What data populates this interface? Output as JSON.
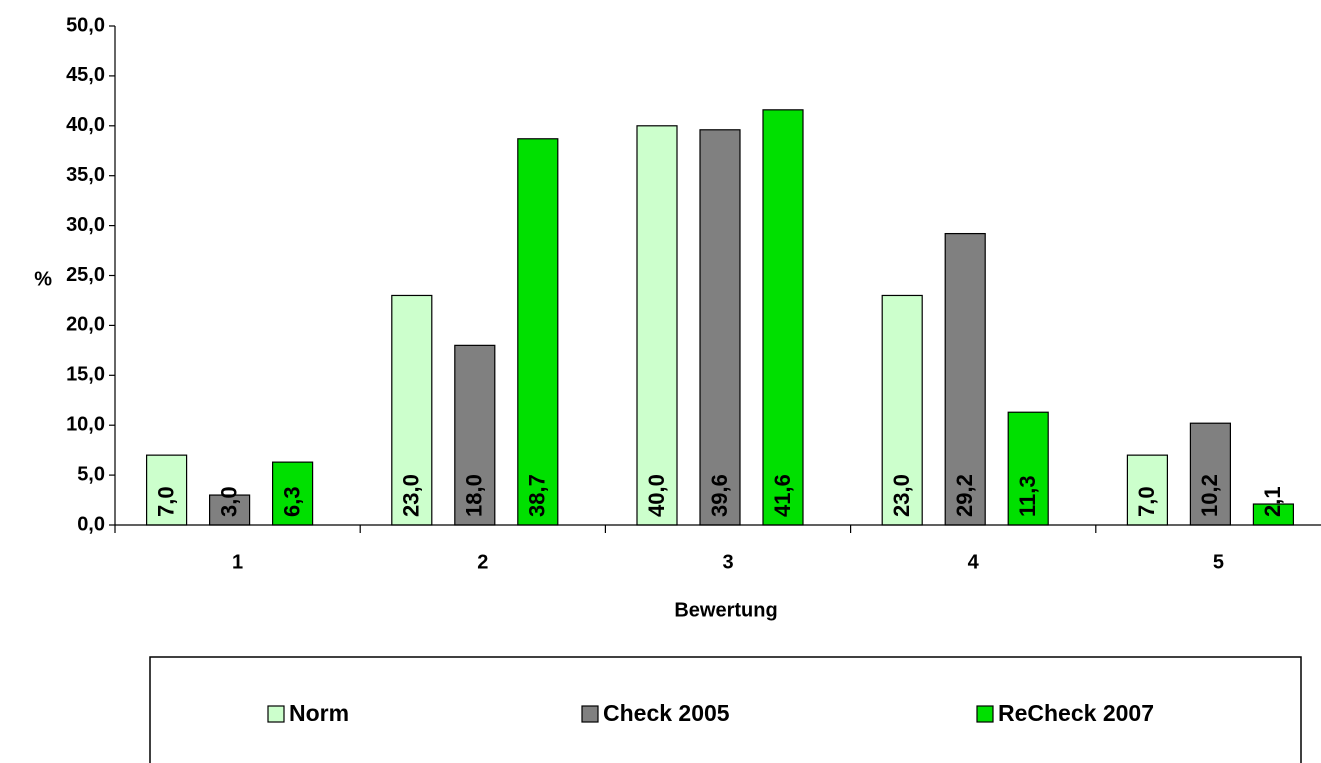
{
  "chart_data": {
    "type": "bar",
    "ylabel": "%",
    "xlabel": "Bewertung",
    "categories": [
      "1",
      "2",
      "3",
      "4",
      "5"
    ],
    "ylim": [
      0,
      50
    ],
    "y_ticks": [
      "0,0",
      "5,0",
      "10,0",
      "15,0",
      "20,0",
      "25,0",
      "30,0",
      "35,0",
      "40,0",
      "45,0",
      "50,0"
    ],
    "legend_position": "bottom",
    "series": [
      {
        "name": "Norm",
        "color": "#CCFFCC",
        "values": [
          7.0,
          23.0,
          40.0,
          23.0,
          7.0
        ],
        "labels": [
          "7,0",
          "23,0",
          "40,0",
          "23,0",
          "7,0"
        ]
      },
      {
        "name": "Check 2005",
        "color": "#808080",
        "values": [
          3.0,
          18.0,
          39.6,
          29.2,
          10.2
        ],
        "labels": [
          "3,0",
          "18,0",
          "39,6",
          "29,2",
          "10,2"
        ]
      },
      {
        "name": "ReCheck 2007",
        "color": "#00E000",
        "values": [
          6.3,
          38.7,
          41.6,
          11.3,
          2.1
        ],
        "labels": [
          "6,3",
          "38,7",
          "41,6",
          "11,3",
          "2,1"
        ]
      }
    ]
  }
}
